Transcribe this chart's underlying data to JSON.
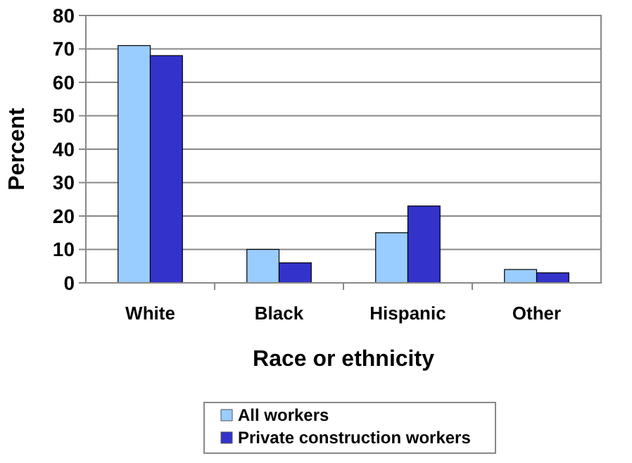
{
  "chart_data": {
    "type": "bar",
    "xlabel": "Race or ethnicity",
    "ylabel": "Percent",
    "categories": [
      "White",
      "Black",
      "Hispanic",
      "Other"
    ],
    "series": [
      {
        "name": "All workers",
        "color": "#99ccff",
        "values": [
          71,
          10,
          15,
          4
        ]
      },
      {
        "name": "Private construction workers",
        "color": "#3333cc",
        "values": [
          68,
          6,
          23,
          3
        ]
      }
    ],
    "ylim": [
      0,
      80
    ],
    "yticks": [
      0,
      10,
      20,
      30,
      40,
      50,
      60,
      70,
      80
    ],
    "grid": "y",
    "legend": "bottom"
  }
}
